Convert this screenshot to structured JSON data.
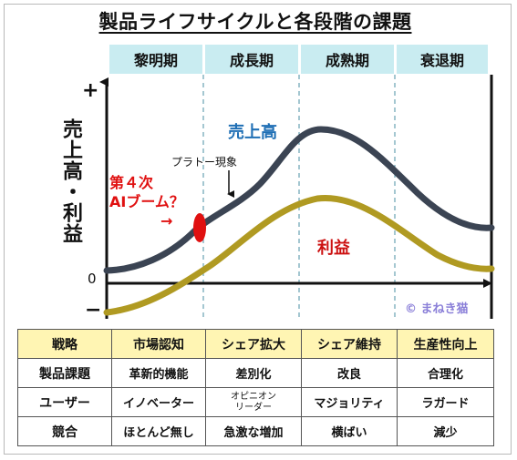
{
  "title": "製品ライフサイクルと各段階の課題",
  "stages": [
    "黎明期",
    "成長期",
    "成熟期",
    "衰退期"
  ],
  "axis": {
    "y_label": "売上高・利益",
    "plus": "+",
    "minus": "−",
    "zero": "0"
  },
  "annotations": {
    "sales": "売上高",
    "profit": "利益",
    "plateau": "プラトー現象",
    "ai_boom_line1": "第４次",
    "ai_boom_line2": "AIブーム？",
    "ai_arrow": "→",
    "copyright": "© まねき猫"
  },
  "colors": {
    "sales_curve": "#3b4453",
    "profit_curve": "#b09a22",
    "ai_marker": "#e01010",
    "stage_bg": "#c9ecf1",
    "header_row_bg": "#fff5b3",
    "sales_label": "#1f6fb5",
    "profit_label": "#cc1111"
  },
  "table": {
    "header": [
      "戦略",
      "市場認知",
      "シェア拡大",
      "シェア維持",
      "生産性向上"
    ],
    "rows": [
      [
        "製品課題",
        "革新的機能",
        "差別化",
        "改良",
        "合理化"
      ],
      [
        "ユーザー",
        "イノベーター",
        "オピニオン\nリーダー",
        "マジョリティ",
        "ラガード"
      ],
      [
        "競合",
        "ほとんど無し",
        "急激な増加",
        "横ばい",
        "減少"
      ]
    ]
  }
}
